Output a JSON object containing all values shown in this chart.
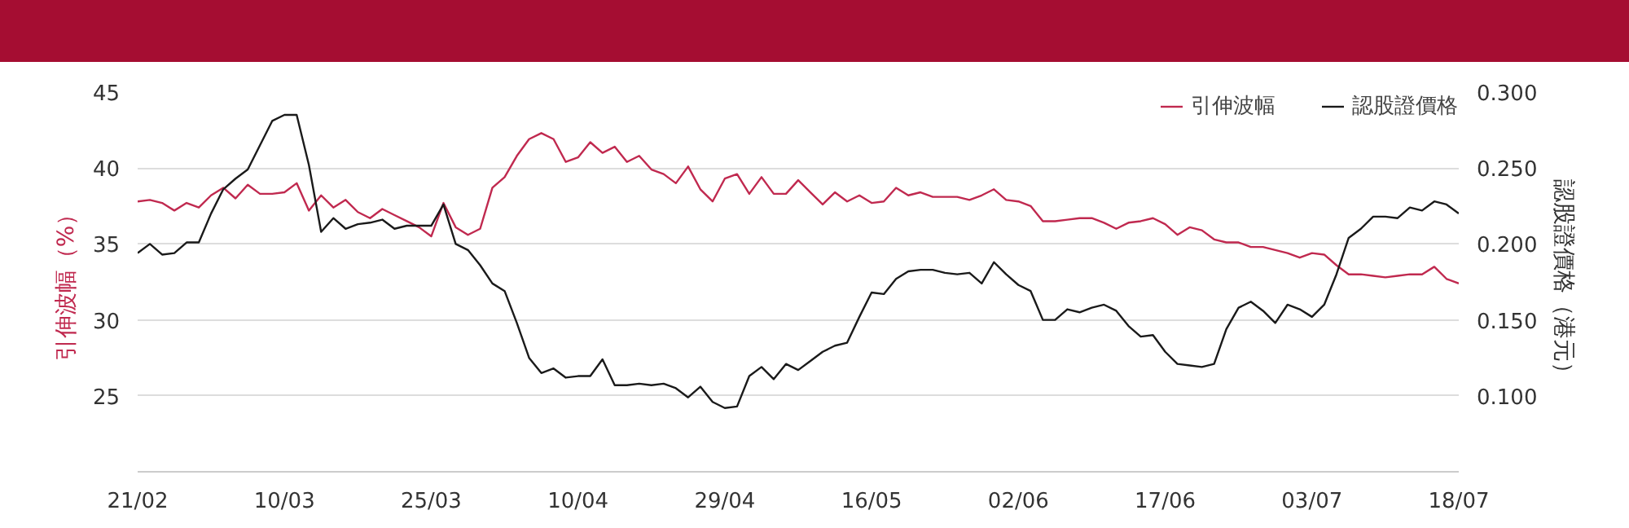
{
  "chart_data": {
    "type": "line",
    "categories": [
      "21/02",
      null,
      null,
      null,
      null,
      null,
      null,
      null,
      null,
      null,
      null,
      null,
      "10/03",
      null,
      null,
      null,
      null,
      null,
      null,
      null,
      null,
      null,
      null,
      null,
      "25/03",
      null,
      null,
      null,
      null,
      null,
      null,
      null,
      null,
      null,
      null,
      null,
      "10/04",
      null,
      null,
      null,
      null,
      null,
      null,
      null,
      null,
      null,
      null,
      null,
      "29/04",
      null,
      null,
      null,
      null,
      null,
      null,
      null,
      null,
      null,
      null,
      null,
      "16/05",
      null,
      null,
      null,
      null,
      null,
      null,
      null,
      null,
      null,
      null,
      null,
      "02/06",
      null,
      null,
      null,
      null,
      null,
      null,
      null,
      null,
      null,
      null,
      null,
      "17/06",
      null,
      null,
      null,
      null,
      null,
      null,
      null,
      null,
      null,
      null,
      null,
      "03/07",
      null,
      null,
      null,
      null,
      null,
      null,
      null,
      null,
      null,
      null,
      null,
      "18/07"
    ],
    "series": [
      {
        "name": "引伸波幅",
        "color": "#c0294f",
        "values": [
          37.8,
          37.9,
          37.7,
          37.2,
          37.7,
          37.4,
          38.2,
          38.7,
          38.0,
          38.9,
          38.3,
          38.3,
          38.4,
          39.0,
          37.2,
          38.2,
          37.4,
          37.9,
          37.1,
          36.7,
          37.3,
          36.9,
          36.5,
          36.1,
          35.5,
          37.7,
          36.1,
          35.6,
          36.0,
          38.7,
          39.4,
          40.8,
          41.9,
          42.3,
          41.9,
          40.4,
          40.7,
          41.7,
          41.0,
          41.4,
          40.4,
          40.8,
          39.9,
          39.6,
          39.0,
          40.1,
          38.6,
          37.8,
          39.3,
          39.6,
          38.3,
          39.4,
          38.3,
          38.3,
          39.2,
          38.4,
          37.6,
          38.4,
          37.8,
          38.2,
          37.7,
          37.8,
          38.7,
          38.2,
          38.4,
          38.1,
          38.1,
          38.1,
          37.9,
          38.2,
          38.6,
          37.9,
          37.8,
          37.5,
          36.5,
          36.5,
          36.6,
          36.7,
          36.7,
          36.4,
          36.0,
          36.4,
          36.5,
          36.7,
          36.3,
          35.6,
          36.1,
          35.9,
          35.3,
          35.1,
          35.1,
          34.8,
          34.8,
          34.6,
          34.4,
          34.1,
          34.4,
          34.3,
          33.6,
          33.0,
          33.0,
          32.9,
          32.8,
          32.9,
          33.0,
          33.0,
          33.5,
          32.7,
          32.4
        ]
      },
      {
        "name": "認股證價格",
        "color": "#1a1a1a",
        "axis": "y2",
        "values": [
          0.194,
          0.2,
          0.193,
          0.194,
          0.201,
          0.201,
          0.22,
          0.236,
          0.243,
          0.249,
          0.265,
          0.281,
          0.285,
          0.285,
          0.252,
          0.208,
          0.217,
          0.21,
          0.213,
          0.214,
          0.216,
          0.21,
          0.212,
          0.212,
          0.212,
          0.226,
          0.2,
          0.196,
          0.186,
          0.174,
          0.169,
          0.148,
          0.125,
          0.115,
          0.118,
          0.112,
          0.113,
          0.113,
          0.124,
          0.107,
          0.107,
          0.108,
          0.107,
          0.108,
          0.105,
          0.099,
          0.106,
          0.096,
          0.092,
          0.093,
          0.113,
          0.119,
          0.111,
          0.121,
          0.117,
          0.123,
          0.129,
          0.133,
          0.135,
          0.152,
          0.168,
          0.167,
          0.177,
          0.182,
          0.183,
          0.183,
          0.181,
          0.18,
          0.181,
          0.174,
          0.188,
          0.18,
          0.173,
          0.169,
          0.15,
          0.15,
          0.157,
          0.155,
          0.158,
          0.16,
          0.156,
          0.146,
          0.139,
          0.14,
          0.129,
          0.121,
          0.12,
          0.119,
          0.121,
          0.144,
          0.158,
          0.162,
          0.156,
          0.148,
          0.16,
          0.157,
          0.152,
          0.16,
          0.18,
          0.204,
          0.21,
          0.218,
          0.218,
          0.217,
          0.224,
          0.222,
          0.228,
          0.226,
          0.22
        ]
      }
    ],
    "ylabel": "引伸波幅（%）",
    "y2label": "認股證價格（港元）",
    "ylim": [
      20,
      45
    ],
    "yticks": [
      25,
      30,
      35,
      40,
      45
    ],
    "y2lim": [
      0.05,
      0.3
    ],
    "y2ticks": [
      {
        "value": 0.1,
        "label": "0.100"
      },
      {
        "value": 0.15,
        "label": "0.150"
      },
      {
        "value": 0.2,
        "label": "0.200"
      },
      {
        "value": 0.25,
        "label": "0.250"
      },
      {
        "value": 0.3,
        "label": "0.300"
      }
    ],
    "grid": "y",
    "legend": "top right",
    "marker": "none",
    "line_style": "solid"
  }
}
